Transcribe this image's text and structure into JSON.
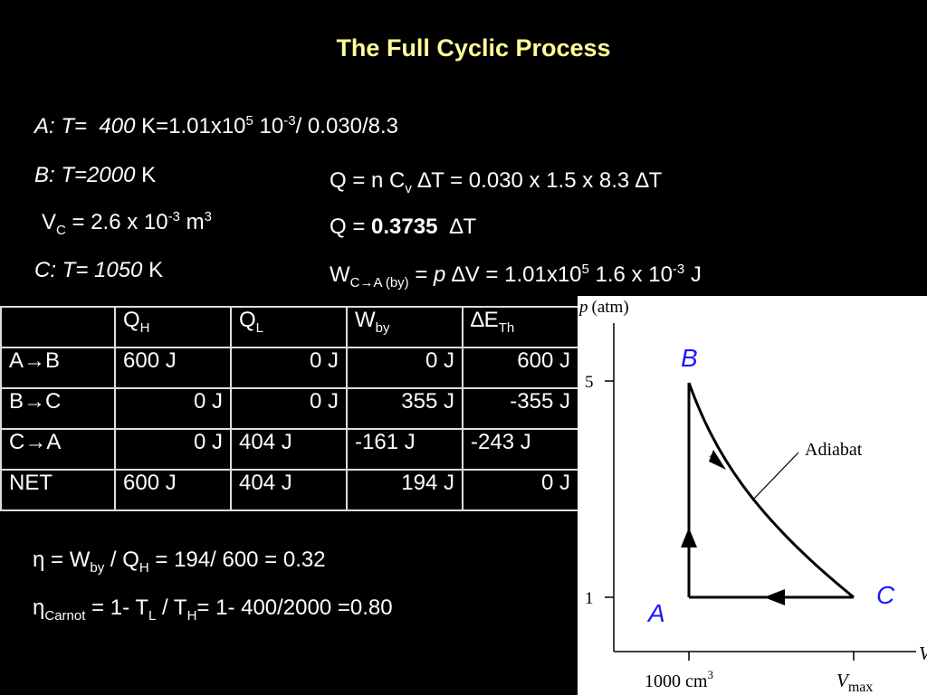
{
  "title": "The Full Cyclic Process",
  "state_a": {
    "prefix": "A: T=",
    "temp": "400",
    "expr_base": "K=1.01x10",
    "expr_exp1": "5",
    "expr_mid": " 10",
    "expr_exp2": "-3",
    "expr_tail": "/ 0.030/8.3"
  },
  "state_b": {
    "prefix": "B: T=2000",
    "unit": "K"
  },
  "vc": {
    "label": "V",
    "label_sub": "C",
    "eq": " = 2.6 x 10",
    "exp": "-3",
    "unit": " m",
    "unit_exp": "3"
  },
  "state_c": {
    "prefix": "C: T= 1050",
    "unit": "K"
  },
  "q_eq": {
    "q": "Q = n C",
    "v_sub": "v",
    "rest": " ∆T = 0.030 x 1.5 x 8.3 ∆T"
  },
  "q_val": {
    "lhs": "Q = ",
    "value": "0.3735",
    "rhs": "∆T"
  },
  "w_eq": {
    "w": "W",
    "sub": "C→A (by)",
    "eq": " = ",
    "p": "p",
    "mid": " ∆V = 1.01x10",
    "exp1": "5",
    "mid2": " 1.6 x 10",
    "exp2": "-3",
    "unit": " J"
  },
  "table": {
    "headers": [
      {
        "main": "",
        "sub": ""
      },
      {
        "main": "Q",
        "sub": "H"
      },
      {
        "main": "Q",
        "sub": "L"
      },
      {
        "main": "W",
        "sub": "by"
      },
      {
        "main": "∆E",
        "sub": "Th"
      }
    ],
    "rows": [
      {
        "label": "A→B",
        "qh": "600 J",
        "ql": "0 J",
        "w": "0 J",
        "de": "600 J"
      },
      {
        "label": "B→C",
        "qh": "0 J",
        "ql": "0 J",
        "w": "355 J",
        "de": "-355 J"
      },
      {
        "label": "C→A",
        "qh": "0 J",
        "ql": "404 J",
        "w": "-161 J",
        "de": "-243 J"
      },
      {
        "label": "NET",
        "qh": "600 J",
        "ql": "404 J",
        "w": "194 J",
        "de": "0 J"
      }
    ]
  },
  "eff": {
    "eta": "η",
    "eq": " = W",
    "sub1": "by",
    "slash": " / Q",
    "sub2": "H",
    "rest": " = 194/ 600 = 0.32"
  },
  "carnot": {
    "eta": "η",
    "sub": "Carnot",
    "eq": " = 1- T",
    "sub1": "L",
    "slash": " / T",
    "sub2": "H",
    "rest": "= 1- 400/2000 =0.80"
  },
  "diagram": {
    "y_axis_label": "p",
    "y_axis_unit": "(atm)",
    "x_axis_label": "V",
    "tick_5": "5",
    "tick_1": "1",
    "x_tick_1": "1000 cm",
    "x_tick_1_exp": "3",
    "x_tick_2": "V",
    "x_tick_2_sub": "max",
    "point_b": "B",
    "point_a": "A",
    "point_c": "C",
    "curve_label": "Adiabat",
    "point_color": "#1a1aff"
  }
}
